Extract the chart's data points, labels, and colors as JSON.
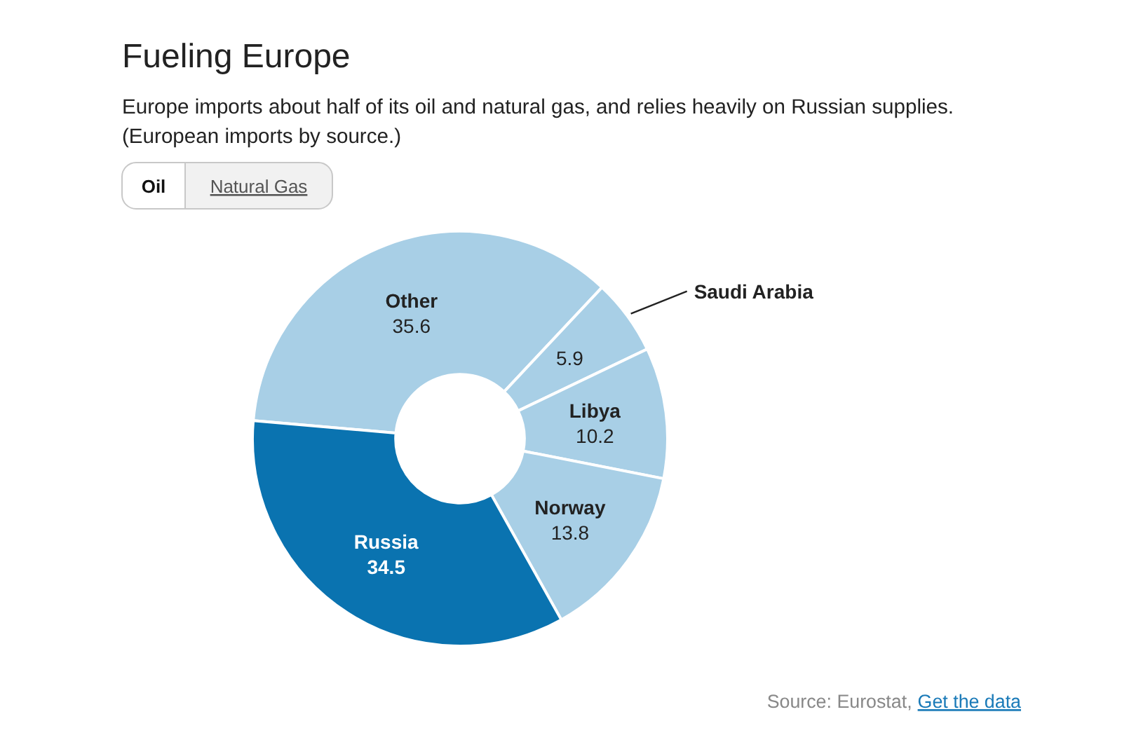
{
  "chart_data": {
    "type": "donut",
    "title": "Fueling Europe",
    "subtitle": "Europe imports about half of its oil and natural gas, and relies heavily on Russian supplies. (European imports by source.)",
    "categories": [
      "Other",
      "Saudi Arabia",
      "Libya",
      "Norway",
      "Russia"
    ],
    "values": [
      35.6,
      5.9,
      10.2,
      13.8,
      34.5
    ],
    "colors": [
      "#a8cfe6",
      "#a8cfe6",
      "#a8cfe6",
      "#a8cfe6",
      "#0a73b0"
    ],
    "data_labels": true,
    "annotations": [
      "Oil",
      "Natural Gas",
      "Source: Eurostat,",
      "Get the data"
    ]
  }
}
